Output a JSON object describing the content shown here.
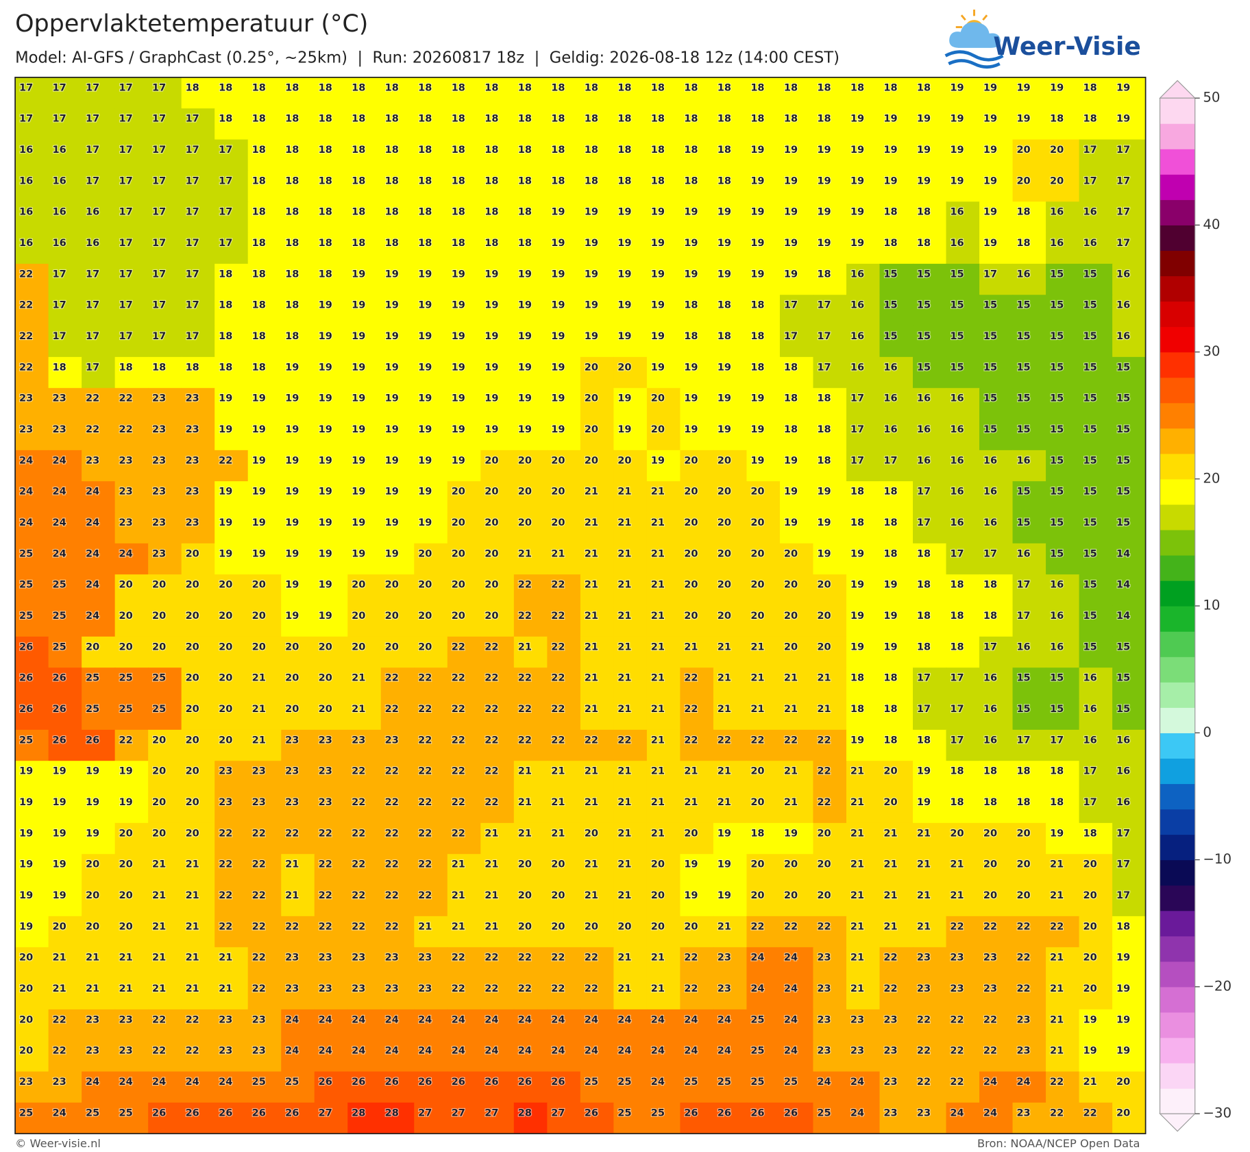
{
  "header": {
    "title": "Oppervlaktetemperatuur (°C)",
    "subtitle": "Model: AI-GFS / GraphCast (0.25°, ~25km)  |  Run: 20260817 18z  |  Geldig: 2026-08-18 12z (14:00 CEST)",
    "brand": "Weer-Visie"
  },
  "map": {
    "type": "grid",
    "values": [
      [
        17,
        17,
        17,
        17,
        17,
        18,
        18,
        18,
        18,
        18,
        18,
        18,
        18,
        18,
        18,
        18,
        18,
        18,
        18,
        18,
        18,
        18,
        18,
        18,
        18,
        18,
        18,
        18,
        19,
        19,
        19,
        19,
        18,
        19
      ],
      [
        17,
        17,
        17,
        17,
        17,
        17,
        18,
        18,
        18,
        18,
        18,
        18,
        18,
        18,
        18,
        18,
        18,
        18,
        18,
        18,
        18,
        18,
        18,
        18,
        18,
        19,
        19,
        19,
        19,
        19,
        19,
        18,
        18,
        19
      ],
      [
        16,
        16,
        17,
        17,
        17,
        17,
        17,
        18,
        18,
        18,
        18,
        18,
        18,
        18,
        18,
        18,
        18,
        18,
        18,
        18,
        18,
        18,
        19,
        19,
        19,
        19,
        19,
        19,
        19,
        19,
        20,
        20,
        17,
        17
      ],
      [
        16,
        16,
        17,
        17,
        17,
        17,
        17,
        18,
        18,
        18,
        18,
        18,
        18,
        18,
        18,
        18,
        18,
        18,
        18,
        18,
        18,
        18,
        19,
        19,
        19,
        19,
        19,
        19,
        19,
        19,
        20,
        20,
        17,
        17
      ],
      [
        16,
        16,
        16,
        17,
        17,
        17,
        17,
        18,
        18,
        18,
        18,
        18,
        18,
        18,
        18,
        18,
        19,
        19,
        19,
        19,
        19,
        19,
        19,
        19,
        19,
        19,
        18,
        18,
        16,
        19,
        18,
        16,
        16,
        17
      ],
      [
        16,
        16,
        16,
        17,
        17,
        17,
        17,
        18,
        18,
        18,
        18,
        18,
        18,
        18,
        18,
        18,
        19,
        19,
        19,
        19,
        19,
        19,
        19,
        19,
        19,
        19,
        18,
        18,
        16,
        19,
        18,
        16,
        16,
        17
      ],
      [
        22,
        17,
        17,
        17,
        17,
        17,
        18,
        18,
        18,
        18,
        19,
        19,
        19,
        19,
        19,
        19,
        19,
        19,
        19,
        19,
        19,
        19,
        19,
        19,
        18,
        16,
        15,
        15,
        15,
        17,
        16,
        15,
        15,
        16
      ],
      [
        22,
        17,
        17,
        17,
        17,
        17,
        18,
        18,
        18,
        19,
        19,
        19,
        19,
        19,
        19,
        19,
        19,
        19,
        19,
        19,
        18,
        18,
        18,
        17,
        17,
        16,
        15,
        15,
        15,
        15,
        15,
        15,
        15,
        16
      ],
      [
        22,
        17,
        17,
        17,
        17,
        17,
        18,
        18,
        18,
        19,
        19,
        19,
        19,
        19,
        19,
        19,
        19,
        19,
        19,
        19,
        18,
        18,
        18,
        17,
        17,
        16,
        15,
        15,
        15,
        15,
        15,
        15,
        15,
        16
      ],
      [
        22,
        18,
        17,
        18,
        18,
        18,
        18,
        18,
        19,
        19,
        19,
        19,
        19,
        19,
        19,
        19,
        19,
        20,
        20,
        19,
        19,
        19,
        18,
        18,
        17,
        16,
        16,
        15,
        15,
        15,
        15,
        15,
        15,
        15
      ],
      [
        23,
        23,
        22,
        22,
        23,
        23,
        19,
        19,
        19,
        19,
        19,
        19,
        19,
        19,
        19,
        19,
        19,
        20,
        19,
        20,
        19,
        19,
        19,
        18,
        18,
        17,
        16,
        16,
        16,
        15,
        15,
        15,
        15,
        15
      ],
      [
        23,
        23,
        22,
        22,
        23,
        23,
        19,
        19,
        19,
        19,
        19,
        19,
        19,
        19,
        19,
        19,
        19,
        20,
        19,
        20,
        19,
        19,
        19,
        18,
        18,
        17,
        16,
        16,
        16,
        15,
        15,
        15,
        15,
        15
      ],
      [
        24,
        24,
        23,
        23,
        23,
        23,
        22,
        19,
        19,
        19,
        19,
        19,
        19,
        19,
        20,
        20,
        20,
        20,
        20,
        19,
        20,
        20,
        19,
        19,
        18,
        17,
        17,
        16,
        16,
        16,
        16,
        15,
        15,
        15
      ],
      [
        24,
        24,
        24,
        23,
        23,
        23,
        19,
        19,
        19,
        19,
        19,
        19,
        19,
        20,
        20,
        20,
        20,
        21,
        21,
        21,
        20,
        20,
        20,
        19,
        19,
        18,
        18,
        17,
        16,
        16,
        15,
        15,
        15,
        15
      ],
      [
        24,
        24,
        24,
        23,
        23,
        23,
        19,
        19,
        19,
        19,
        19,
        19,
        19,
        20,
        20,
        20,
        20,
        21,
        21,
        21,
        20,
        20,
        20,
        19,
        19,
        18,
        18,
        17,
        16,
        16,
        15,
        15,
        15,
        15
      ],
      [
        25,
        24,
        24,
        24,
        23,
        20,
        19,
        19,
        19,
        19,
        19,
        19,
        20,
        20,
        20,
        21,
        21,
        21,
        21,
        21,
        20,
        20,
        20,
        20,
        19,
        19,
        18,
        18,
        17,
        17,
        16,
        15,
        15,
        14
      ],
      [
        25,
        25,
        24,
        20,
        20,
        20,
        20,
        20,
        19,
        19,
        20,
        20,
        20,
        20,
        20,
        22,
        22,
        21,
        21,
        21,
        20,
        20,
        20,
        20,
        20,
        19,
        19,
        18,
        18,
        18,
        17,
        16,
        15,
        14
      ],
      [
        25,
        25,
        24,
        20,
        20,
        20,
        20,
        20,
        19,
        19,
        20,
        20,
        20,
        20,
        20,
        22,
        22,
        21,
        21,
        21,
        20,
        20,
        20,
        20,
        20,
        19,
        19,
        18,
        18,
        18,
        17,
        16,
        15,
        14
      ],
      [
        26,
        25,
        20,
        20,
        20,
        20,
        20,
        20,
        20,
        20,
        20,
        20,
        20,
        22,
        22,
        21,
        22,
        21,
        21,
        21,
        21,
        21,
        21,
        20,
        20,
        19,
        19,
        18,
        18,
        17,
        16,
        16,
        15,
        15
      ],
      [
        26,
        26,
        25,
        25,
        25,
        20,
        20,
        21,
        20,
        20,
        21,
        22,
        22,
        22,
        22,
        22,
        22,
        21,
        21,
        21,
        22,
        21,
        21,
        21,
        21,
        18,
        18,
        17,
        17,
        16,
        15,
        15,
        16,
        15
      ],
      [
        26,
        26,
        25,
        25,
        25,
        20,
        20,
        21,
        20,
        20,
        21,
        22,
        22,
        22,
        22,
        22,
        22,
        21,
        21,
        21,
        22,
        21,
        21,
        21,
        21,
        18,
        18,
        17,
        17,
        16,
        15,
        15,
        16,
        15
      ],
      [
        25,
        26,
        26,
        22,
        20,
        20,
        20,
        21,
        23,
        23,
        23,
        23,
        22,
        22,
        22,
        22,
        22,
        22,
        22,
        21,
        22,
        22,
        22,
        22,
        22,
        19,
        18,
        18,
        17,
        16,
        17,
        17,
        16,
        16
      ],
      [
        19,
        19,
        19,
        19,
        20,
        20,
        23,
        23,
        23,
        23,
        22,
        22,
        22,
        22,
        22,
        21,
        21,
        21,
        21,
        21,
        21,
        21,
        20,
        21,
        22,
        21,
        20,
        19,
        18,
        18,
        18,
        18,
        17,
        16
      ],
      [
        19,
        19,
        19,
        19,
        20,
        20,
        23,
        23,
        23,
        23,
        22,
        22,
        22,
        22,
        22,
        21,
        21,
        21,
        21,
        21,
        21,
        21,
        20,
        21,
        22,
        21,
        20,
        19,
        18,
        18,
        18,
        18,
        17,
        16
      ],
      [
        19,
        19,
        19,
        20,
        20,
        20,
        22,
        22,
        22,
        22,
        22,
        22,
        22,
        22,
        21,
        21,
        21,
        20,
        21,
        21,
        20,
        19,
        18,
        19,
        20,
        21,
        21,
        21,
        20,
        20,
        20,
        19,
        18,
        17
      ],
      [
        19,
        19,
        20,
        20,
        21,
        21,
        22,
        22,
        21,
        22,
        22,
        22,
        22,
        21,
        21,
        20,
        20,
        21,
        21,
        20,
        19,
        19,
        20,
        20,
        20,
        21,
        21,
        21,
        21,
        20,
        20,
        21,
        20,
        17
      ],
      [
        19,
        19,
        20,
        20,
        21,
        21,
        22,
        22,
        21,
        22,
        22,
        22,
        22,
        21,
        21,
        20,
        20,
        21,
        21,
        20,
        19,
        19,
        20,
        20,
        20,
        21,
        21,
        21,
        21,
        20,
        20,
        21,
        20,
        17
      ],
      [
        19,
        20,
        20,
        20,
        21,
        21,
        22,
        22,
        22,
        22,
        22,
        22,
        21,
        21,
        21,
        20,
        20,
        20,
        20,
        20,
        20,
        21,
        22,
        22,
        22,
        21,
        21,
        21,
        22,
        22,
        22,
        22,
        20,
        18
      ],
      [
        20,
        21,
        21,
        21,
        21,
        21,
        21,
        22,
        23,
        23,
        23,
        23,
        23,
        22,
        22,
        22,
        22,
        22,
        21,
        21,
        22,
        23,
        24,
        24,
        23,
        21,
        22,
        23,
        23,
        23,
        22,
        21,
        20,
        19
      ],
      [
        20,
        21,
        21,
        21,
        21,
        21,
        21,
        22,
        23,
        23,
        23,
        23,
        23,
        22,
        22,
        22,
        22,
        22,
        21,
        21,
        22,
        23,
        24,
        24,
        23,
        21,
        22,
        23,
        23,
        23,
        22,
        21,
        20,
        19
      ],
      [
        20,
        22,
        23,
        23,
        22,
        22,
        23,
        23,
        24,
        24,
        24,
        24,
        24,
        24,
        24,
        24,
        24,
        24,
        24,
        24,
        24,
        24,
        25,
        24,
        23,
        23,
        23,
        22,
        22,
        22,
        23,
        21,
        19,
        19
      ],
      [
        20,
        22,
        23,
        23,
        22,
        22,
        23,
        23,
        24,
        24,
        24,
        24,
        24,
        24,
        24,
        24,
        24,
        24,
        24,
        24,
        24,
        24,
        25,
        24,
        23,
        23,
        23,
        22,
        22,
        22,
        23,
        21,
        19,
        19
      ],
      [
        23,
        23,
        24,
        24,
        24,
        24,
        24,
        25,
        25,
        26,
        26,
        26,
        26,
        26,
        26,
        26,
        26,
        25,
        25,
        24,
        25,
        25,
        25,
        25,
        24,
        24,
        23,
        22,
        22,
        24,
        24,
        22,
        21,
        20
      ],
      [
        25,
        24,
        25,
        25,
        26,
        26,
        26,
        26,
        26,
        27,
        28,
        28,
        27,
        27,
        27,
        28,
        27,
        26,
        25,
        25,
        26,
        26,
        26,
        26,
        25,
        24,
        23,
        23,
        24,
        24,
        23,
        22,
        22,
        20
      ]
    ],
    "colorbar": {
      "lim": [
        -30,
        50
      ],
      "ticks": [
        {
          "value": -30,
          "label": "−30"
        },
        {
          "value": -20,
          "label": "−20"
        },
        {
          "value": -10,
          "label": "−10"
        },
        0,
        10,
        20,
        30,
        40,
        50
      ],
      "colors": [
        "#fdf0fa",
        "#fbd6f5",
        "#f7b1ee",
        "#ea8fe0",
        "#d56fd3",
        "#b54fc0",
        "#8f34ad",
        "#6a1a9a",
        "#2a0657",
        "#0a0a55",
        "#06207f",
        "#0a3ea5",
        "#0d62c2",
        "#10a0e0",
        "#3cc8f5",
        "#d4f9dc",
        "#a6eea8",
        "#7bdd78",
        "#4fca52",
        "#1ab52b",
        "#00a020",
        "#44b31a",
        "#7cc20a",
        "#c8da00",
        "#ffff00",
        "#ffdd00",
        "#ffb000",
        "#ff8000",
        "#ff5a00",
        "#ff3000",
        "#f00000",
        "#d80000",
        "#b00000",
        "#800000",
        "#500030",
        "#8a006a",
        "#c000b0",
        "#f050d8",
        "#f8a8e0",
        "#fdd8f0"
      ]
    }
  },
  "footer": {
    "credit": "© Weer-visie.nl",
    "source": "Bron: NOAA/NCEP Open Data"
  }
}
